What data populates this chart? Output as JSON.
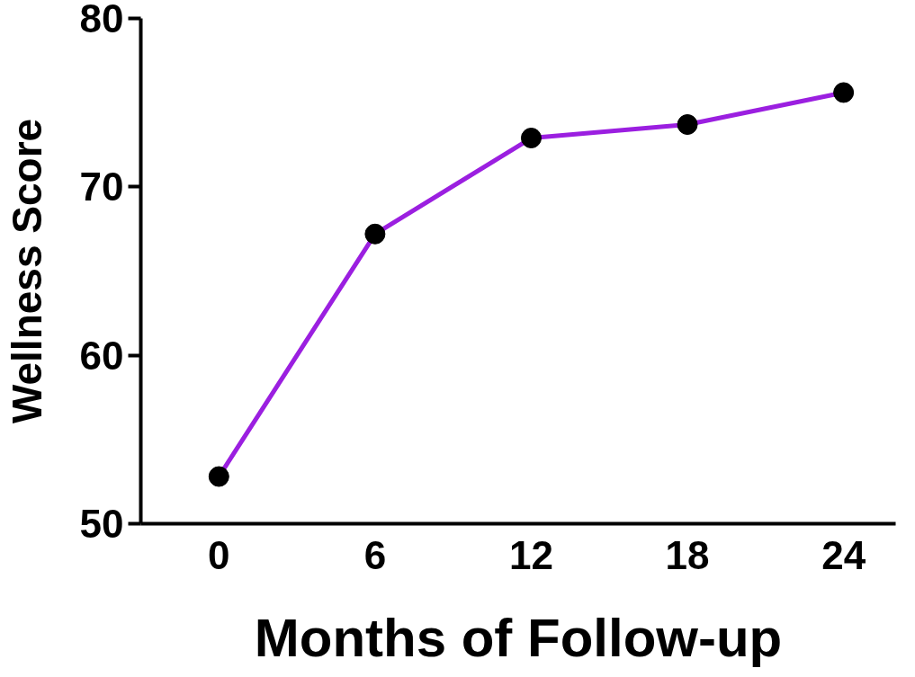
{
  "chart_data": {
    "type": "line",
    "xlabel": "Months of Follow-up",
    "ylabel": "Wellness Score",
    "x": [
      0,
      6,
      12,
      18,
      24
    ],
    "series": [
      {
        "color": "#9b1fe0",
        "colors": [
          "#000000",
          "#000000",
          "#000000",
          "#000000",
          "#000000"
        ],
        "values": [
          52.8,
          67.2,
          72.9,
          73.7,
          75.6
        ]
      }
    ],
    "xlim": [
      -3,
      26
    ],
    "xticks": [
      0,
      6,
      12,
      18,
      24
    ],
    "ylim": [
      50,
      80
    ],
    "yticks": [
      50,
      60,
      70,
      80
    ],
    "grid": false,
    "marker": "circle",
    "line_style": "solid"
  }
}
